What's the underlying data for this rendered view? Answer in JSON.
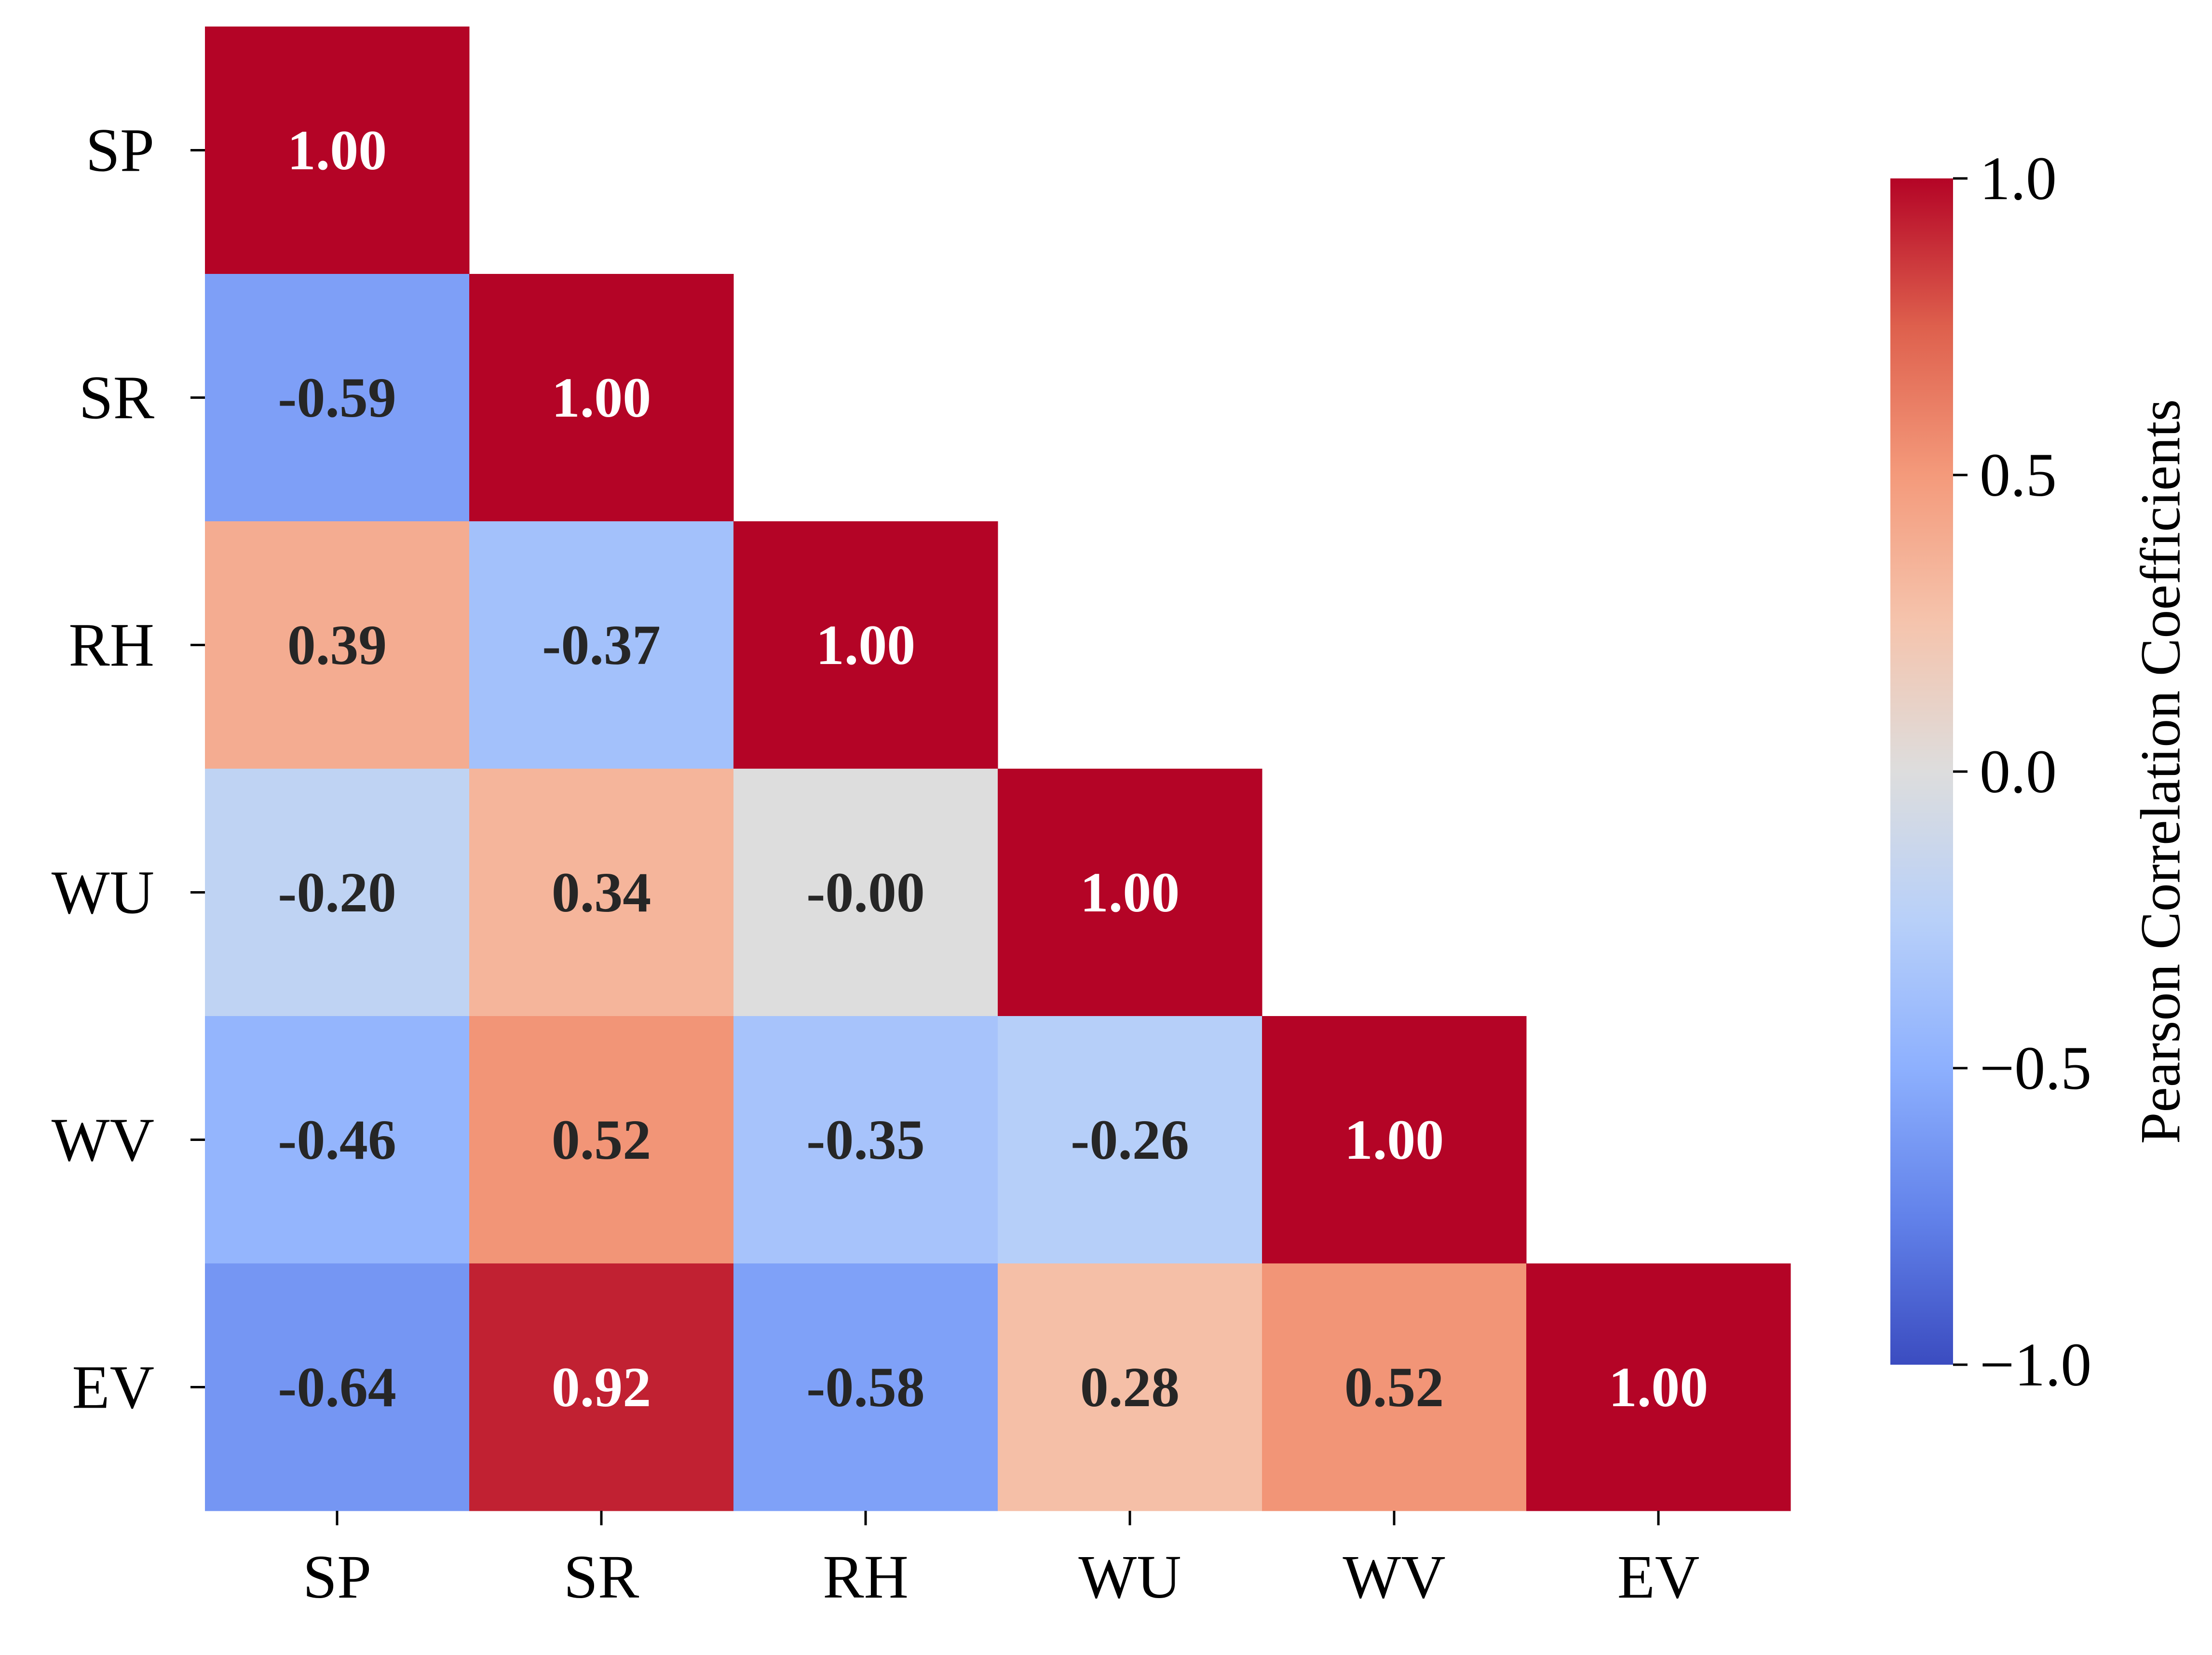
{
  "chart_data": {
    "type": "heatmap",
    "title": "",
    "xlabel": "",
    "ylabel": "",
    "x_categories": [
      "SP",
      "SR",
      "RH",
      "WU",
      "WV",
      "EV"
    ],
    "y_categories": [
      "SP",
      "SR",
      "RH",
      "WU",
      "WV",
      "EV"
    ],
    "mask": "upper-triangle",
    "values": [
      [
        1.0,
        null,
        null,
        null,
        null,
        null
      ],
      [
        -0.59,
        1.0,
        null,
        null,
        null,
        null
      ],
      [
        0.39,
        -0.37,
        1.0,
        null,
        null,
        null
      ],
      [
        -0.2,
        0.34,
        -0.0,
        1.0,
        null,
        null
      ],
      [
        -0.46,
        0.52,
        -0.35,
        -0.26,
        1.0,
        null
      ],
      [
        -0.64,
        0.92,
        -0.58,
        0.28,
        0.52,
        1.0
      ]
    ],
    "cell_labels": [
      [
        "1.00",
        "",
        "",
        "",
        "",
        ""
      ],
      [
        "-0.59",
        "1.00",
        "",
        "",
        "",
        ""
      ],
      [
        "0.39",
        "-0.37",
        "1.00",
        "",
        "",
        ""
      ],
      [
        "-0.20",
        "0.34",
        "-0.00",
        "1.00",
        "",
        ""
      ],
      [
        "-0.46",
        "0.52",
        "-0.35",
        "-0.26",
        "1.00",
        ""
      ],
      [
        "-0.64",
        "0.92",
        "-0.58",
        "0.28",
        "0.52",
        "1.00"
      ]
    ],
    "colormap": "coolwarm",
    "vmin": -1.0,
    "vmax": 1.0,
    "colorbar": {
      "label": "Pearson Correlation Coefficients",
      "ticks": [
        1.0,
        0.5,
        0.0,
        -0.5,
        -1.0
      ],
      "tick_labels": [
        "1.0",
        "0.5",
        "0.0",
        "−0.5",
        "−1.0"
      ],
      "position": "right"
    },
    "colors": {
      "dark_text": "#262626",
      "light_text": "#ffffff",
      "low": "#3b4cc0",
      "mid": "#dddddd",
      "high": "#b40426"
    }
  }
}
